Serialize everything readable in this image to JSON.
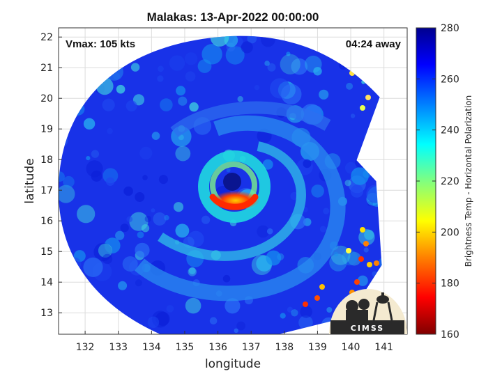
{
  "chart_data": {
    "type": "heatmap",
    "title": "Malakas: 13-Apr-2022 00:00:00",
    "xlabel": "longitude",
    "ylabel": "latitude",
    "xlim": [
      131.2,
      141.7
    ],
    "ylim": [
      12.3,
      22.3
    ],
    "xticks": [
      132,
      133,
      134,
      135,
      136,
      137,
      138,
      139,
      140,
      141
    ],
    "yticks": [
      13,
      14,
      15,
      16,
      17,
      18,
      19,
      20,
      21,
      22
    ],
    "grid": true,
    "annotations": {
      "vmax": "Vmax: 105 kts",
      "time_away": "04:24 away"
    },
    "colorbar": {
      "label": "Brightness Temp - Horizontal Polarization",
      "min": 160,
      "max": 280,
      "ticks": [
        160,
        180,
        200,
        220,
        240,
        260,
        280
      ],
      "colormap": [
        "#800000",
        "#ff0000",
        "#ff8000",
        "#ffff00",
        "#80ff80",
        "#00ffff",
        "#0080ff",
        "#0000ff",
        "#00008f"
      ]
    },
    "storm_center": {
      "lon": 136.4,
      "lat": 17.3
    },
    "eye_temperature": 268,
    "eyewall_min_temperature": 185,
    "background_temperature": 268,
    "logo": "CIMSS"
  }
}
